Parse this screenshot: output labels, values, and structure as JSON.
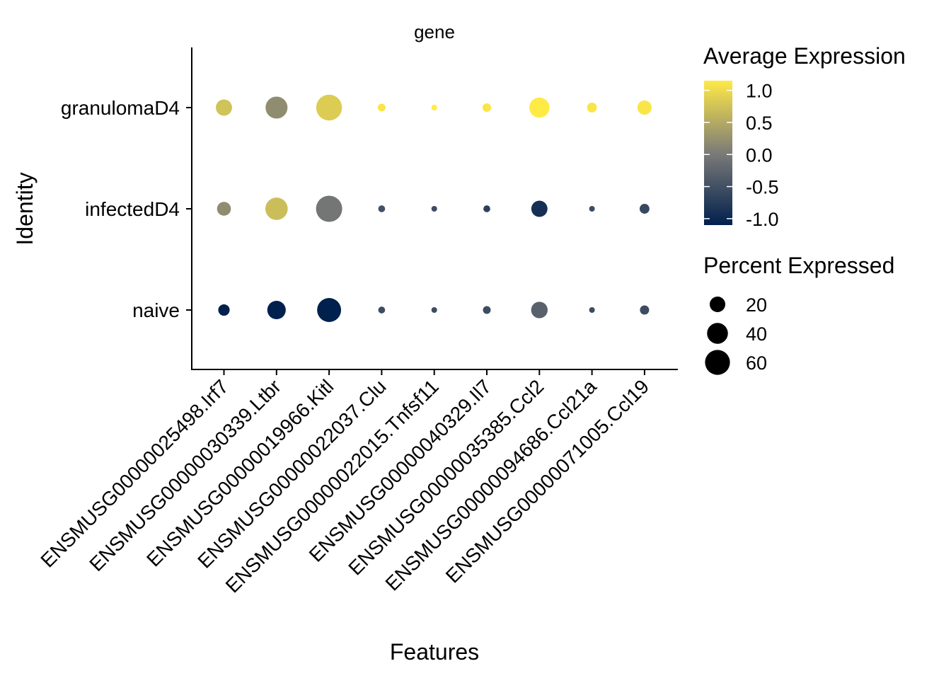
{
  "chart_data": {
    "type": "dot",
    "facet_label": "gene",
    "xlabel": "Features",
    "ylabel": "Identity",
    "features": [
      "ENSMUSG00000025498.Irf7",
      "ENSMUSG00000030339.Ltbr",
      "ENSMUSG00000019966.Kitl",
      "ENSMUSG00000022037.Clu",
      "ENSMUSG00000022015.Tnfsf11",
      "ENSMUSG00000040329.Il7",
      "ENSMUSG00000035385.Ccl2",
      "ENSMUSG00000094686.Ccl21a",
      "ENSMUSG00000071005.Ccl19"
    ],
    "identities": [
      "granulomaD4",
      "infectedD4",
      "naive"
    ],
    "avg_expression": [
      [
        0.75,
        0.2,
        0.85,
        1.1,
        1.15,
        1.1,
        1.15,
        1.1,
        1.1
      ],
      [
        0.2,
        0.7,
        -0.05,
        -0.5,
        -0.55,
        -0.7,
        -0.9,
        -0.55,
        -0.6
      ],
      [
        -1.1,
        -1.1,
        -1.1,
        -0.55,
        -0.55,
        -0.55,
        -0.3,
        -0.55,
        -0.55
      ]
    ],
    "pct_expressed": [
      [
        22,
        45,
        65,
        3,
        1,
        4,
        37,
        6,
        16
      ],
      [
        15,
        47,
        67,
        2,
        1,
        2,
        22,
        1,
        6
      ],
      [
        9,
        30,
        55,
        2,
        1,
        3,
        23,
        1,
        5
      ]
    ],
    "color_legend": {
      "title": "Average Expression",
      "ticks": [
        "1.0",
        "0.5",
        "0.0",
        "-0.5",
        "-1.0"
      ],
      "tick_values": [
        1.0,
        0.5,
        0.0,
        -0.5,
        -1.0
      ],
      "range": [
        -1.1,
        1.15
      ],
      "low_color": "#00204D",
      "mid_color": "#7C7B78",
      "high_color": "#FFEA46"
    },
    "size_legend": {
      "title": "Percent Expressed",
      "ticks": [
        "20",
        "40",
        "60"
      ],
      "tick_values": [
        20,
        40,
        60
      ]
    }
  }
}
